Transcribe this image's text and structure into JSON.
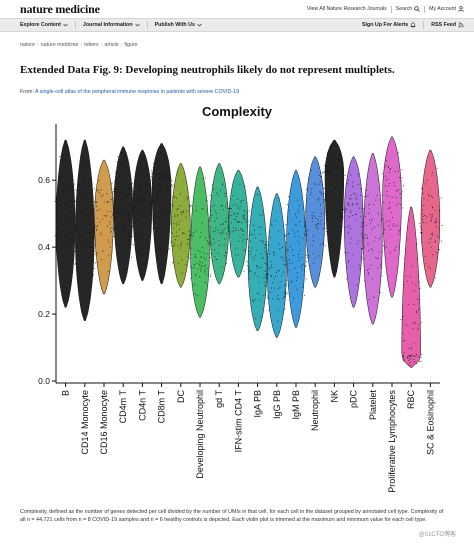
{
  "header": {
    "logo": "nature medicine",
    "links": [
      "View All Nature Research Journals",
      "Search",
      "My Account"
    ]
  },
  "nav": {
    "left": [
      "Explore Content",
      "Journal Information",
      "Publish With Us"
    ],
    "right": [
      "Sign Up For Alerts",
      "RSS Feed"
    ]
  },
  "breadcrumb": [
    "nature",
    "nature medicine",
    "letters",
    "article",
    "figure"
  ],
  "figure": {
    "title": "Extended Data Fig. 9: Developing neutrophils likely do not represent multiplets.",
    "from_prefix": "From:",
    "from_link": "A single-cell atlas of the peripheral immune response in patients with severe COVID-19"
  },
  "chart_data": {
    "type": "violin",
    "title": "Complexity",
    "xlabel": "",
    "ylabel": "",
    "ylim": [
      0.0,
      0.75
    ],
    "yticks": [
      "0.0",
      "0.2",
      "0.4",
      "0.6"
    ],
    "categories": [
      "B",
      "CD14 Monocyte",
      "CD16 Monocyte",
      "CD4m T",
      "CD4n T",
      "CD8m T",
      "DC",
      "Developing Neutrophil",
      "gd T",
      "IFN-stim CD4 T",
      "IgA PB",
      "IgG PB",
      "IgM PB",
      "Neutrophil",
      "NK",
      "pDC",
      "Platelet",
      "Proliferative Lymphocytes",
      "RBC",
      "SC & Eosinophil"
    ],
    "colors": [
      "#000000",
      "#000000",
      "#c98a2e",
      "#000000",
      "#000000",
      "#000000",
      "#7a9e1a",
      "#2bb34a",
      "#1fa870",
      "#16a58a",
      "#12a0a8",
      "#1596c4",
      "#1a8ad6",
      "#3a7bd6",
      "#000000",
      "#9f5ad8",
      "#c45ad0",
      "#d94ec2",
      "#e0439a",
      "#e34c78"
    ],
    "series": [
      {
        "min": 0.22,
        "max": 0.72,
        "median": 0.47
      },
      {
        "min": 0.18,
        "max": 0.72,
        "median": 0.43
      },
      {
        "min": 0.26,
        "max": 0.66,
        "median": 0.49
      },
      {
        "min": 0.29,
        "max": 0.7,
        "median": 0.52
      },
      {
        "min": 0.3,
        "max": 0.69,
        "median": 0.52
      },
      {
        "min": 0.29,
        "max": 0.71,
        "median": 0.58
      },
      {
        "min": 0.28,
        "max": 0.65,
        "median": 0.46
      },
      {
        "min": 0.19,
        "max": 0.64,
        "median": 0.38
      },
      {
        "min": 0.29,
        "max": 0.65,
        "median": 0.46
      },
      {
        "min": 0.31,
        "max": 0.63,
        "median": 0.48
      },
      {
        "min": 0.15,
        "max": 0.58,
        "median": 0.35
      },
      {
        "min": 0.13,
        "max": 0.56,
        "median": 0.32
      },
      {
        "min": 0.16,
        "max": 0.63,
        "median": 0.41
      },
      {
        "min": 0.28,
        "max": 0.67,
        "median": 0.49
      },
      {
        "min": 0.31,
        "max": 0.72,
        "median": 0.62
      },
      {
        "min": 0.22,
        "max": 0.67,
        "median": 0.49
      },
      {
        "min": 0.17,
        "max": 0.68,
        "median": 0.42
      },
      {
        "min": 0.25,
        "max": 0.73,
        "median": 0.55
      },
      {
        "min": 0.04,
        "max": 0.52,
        "median": 0.08
      },
      {
        "min": 0.28,
        "max": 0.69,
        "median": 0.48
      }
    ]
  },
  "caption": "Complexity, defined as the number of genes detected per cell divided by the number of UMIs in that cell, for each cell in the dataset grouped by annotated cell type. Complexity of all n = 44,721 cells from n = 8 COVID-19 samples and n = 6 healthy controls is depicted. Each violin plot is trimmed at the maximum and minimum value for each cell type.",
  "watermark": "@51CTO博客"
}
